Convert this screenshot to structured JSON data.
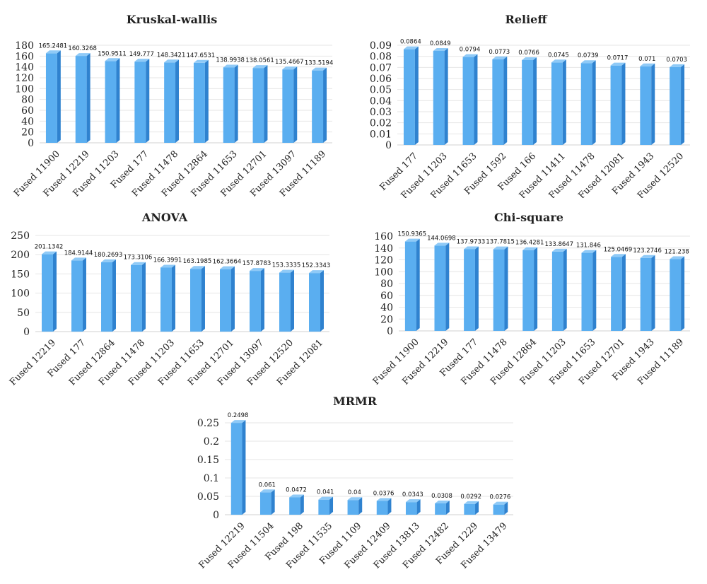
{
  "colors": {
    "bar_front": "#5aaef0",
    "bar_side": "#2f82cf",
    "bar_top": "#8fcaf7",
    "grid": "#e6e6e6",
    "text": "#222222"
  },
  "chart_data": [
    {
      "id": "kruskal",
      "type": "bar",
      "title": "Kruskal-wallis",
      "categories": [
        "Fused 11900",
        "Fused 12219",
        "Fused 11203",
        "Fused 177",
        "Fused 11478",
        "Fused 12864",
        "Fused 11653",
        "Fused 12701",
        "Fused 13097",
        "Fused 11189"
      ],
      "values": [
        165.2481,
        160.3268,
        150.9511,
        149.777,
        148.3421,
        147.6531,
        138.9938,
        138.0561,
        135.4667,
        133.5194
      ],
      "labels": [
        "165.2481",
        "160.3268",
        "150.9511",
        "149.777",
        "148.3421",
        "147.6531",
        "138.9938",
        "138.0561",
        "135.4667",
        "133.5194"
      ],
      "ylim": [
        0,
        180
      ],
      "ticks": [
        "0",
        "20",
        "40",
        "60",
        "80",
        "100",
        "120",
        "140",
        "160",
        "180"
      ],
      "grid": true
    },
    {
      "id": "relieff",
      "type": "bar",
      "title": "Relieff",
      "categories": [
        "Fused 177",
        "Fused 11203",
        "Fused 11653",
        "Fused 1592",
        "Fused 166",
        "Fused 11411",
        "Fused 11478",
        "Fused 12081",
        "Fused 1943",
        "Fused 12520"
      ],
      "values": [
        0.0864,
        0.0849,
        0.0794,
        0.0773,
        0.0766,
        0.0745,
        0.0739,
        0.0717,
        0.071,
        0.0703
      ],
      "labels": [
        "0.0864",
        "0.0849",
        "0.0794",
        "0.0773",
        "0.0766",
        "0.0745",
        "0.0739",
        "0.0717",
        "0.071",
        "0.0703"
      ],
      "ylim": [
        0,
        0.09
      ],
      "ticks": [
        "0",
        "0.01",
        "0.02",
        "0.03",
        "0.04",
        "0.05",
        "0.06",
        "0.07",
        "0.08",
        "0.09"
      ],
      "grid": true
    },
    {
      "id": "anova",
      "type": "bar",
      "title": "ANOVA",
      "categories": [
        "Fused 12219",
        "Fused 177",
        "Fused 12864",
        "Fused 11478",
        "Fused 11203",
        "Fused 11653",
        "Fused 12701",
        "Fused 13097",
        "Fused 12520",
        "Fused 12081"
      ],
      "values": [
        201.1342,
        184.9144,
        180.2693,
        173.3106,
        166.3991,
        163.1985,
        162.3664,
        157.8783,
        153.3335,
        152.3343
      ],
      "labels": [
        "201.1342",
        "184.9144",
        "180.2693",
        "173.3106",
        "166.3991",
        "163.1985",
        "162.3664",
        "157.8783",
        "153.3335",
        "152.3343"
      ],
      "ylim": [
        0,
        250
      ],
      "ticks": [
        "0",
        "50",
        "100",
        "150",
        "200",
        "250"
      ],
      "grid": true
    },
    {
      "id": "chisquare",
      "type": "bar",
      "title": "Chi-square",
      "categories": [
        "Fused 11900",
        "Fused 12219",
        "Fused 177",
        "Fused 11478",
        "Fused 12864",
        "Fused 11203",
        "Fused 11653",
        "Fused 12701",
        "Fused 1943",
        "Fused 11189"
      ],
      "values": [
        150.9365,
        144.0698,
        137.9733,
        137.7815,
        136.4281,
        133.8647,
        131.846,
        125.0469,
        123.2746,
        121.238
      ],
      "labels": [
        "150.9365",
        "144.0698",
        "137.9733",
        "137.7815",
        "136.4281",
        "133.8647",
        "131.846",
        "125.0469",
        "123.2746",
        "121.238"
      ],
      "ylim": [
        0,
        160
      ],
      "ticks": [
        "0",
        "20",
        "40",
        "60",
        "80",
        "100",
        "120",
        "140",
        "160"
      ],
      "grid": true
    },
    {
      "id": "mrmr",
      "type": "bar",
      "title": "MRMR",
      "categories": [
        "Fused 12219",
        "Fused 11504",
        "Fused 198",
        "Fused 11535",
        "Fused 1109",
        "Fused 12409",
        "Fused 13813",
        "Fused 12482",
        "Fused 1229",
        "Fused 13479"
      ],
      "values": [
        0.2498,
        0.061,
        0.0472,
        0.041,
        0.04,
        0.0376,
        0.0343,
        0.0308,
        0.0292,
        0.0276
      ],
      "labels": [
        "0.2498",
        "0.061",
        "0.0472",
        "0.041",
        "0.04",
        "0.0376",
        "0.0343",
        "0.0308",
        "0.0292",
        "0.0276"
      ],
      "ylim": [
        0,
        0.25
      ],
      "ticks": [
        "0",
        "0.05",
        "0.1",
        "0.15",
        "0.2",
        "0.25"
      ],
      "grid": true
    }
  ]
}
